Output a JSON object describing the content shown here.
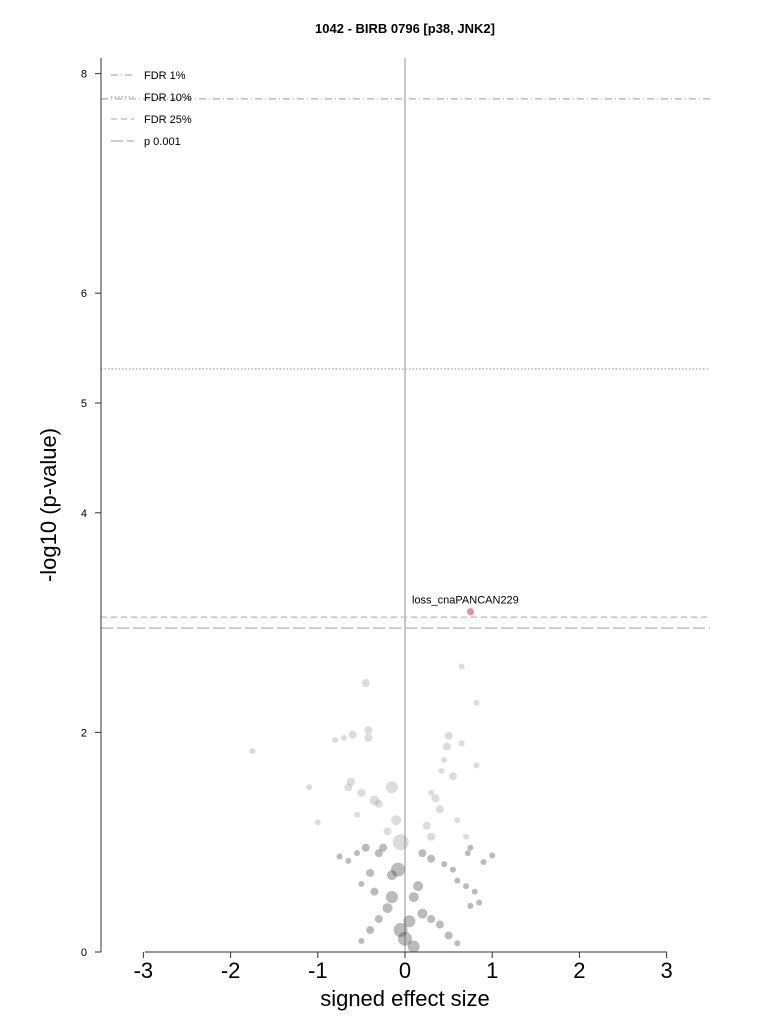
{
  "chart_data": {
    "type": "scatter",
    "title": "1042 - BIRB 0796 [p38, JNK2]",
    "xlabel": "signed effect size",
    "ylabel": "-log10 (p-value)",
    "xlim": [
      -3.5,
      3.5
    ],
    "ylim": [
      0,
      8.2
    ],
    "xticks": [
      -3,
      -2,
      -1,
      0,
      1,
      2,
      3
    ],
    "xtick_labels": [
      "-3",
      "-2",
      "-1",
      "0",
      "1",
      "2",
      "3"
    ],
    "yticks": [
      0,
      2,
      4,
      5,
      6,
      8
    ],
    "ytick_labels": [
      "0",
      "2",
      "4",
      "5",
      "6",
      "8"
    ],
    "grid": false,
    "legend_position": "top-left",
    "thresholds": [
      {
        "name": "FDR 1%",
        "y": 7.77,
        "style": "dashdot",
        "color": "#b0b0b0"
      },
      {
        "name": "FDR 10%",
        "y": 5.31,
        "style": "dotted",
        "color": "#a0a0a0"
      },
      {
        "name": "FDR 25%",
        "y": 3.05,
        "style": "dashed",
        "color": "#b8b8b8"
      },
      {
        "name": "p 0.001",
        "y": 2.95,
        "style": "longdash",
        "color": "#b0b0b0"
      }
    ],
    "highlight": {
      "label": "loss_cnaPANCAN229",
      "x": 0.75,
      "y": 3.1,
      "color": "#f08a9a"
    },
    "points": [
      [
        -1.75,
        1.83,
        3
      ],
      [
        -1.1,
        1.5,
        3
      ],
      [
        -1.0,
        1.18,
        3
      ],
      [
        -0.8,
        1.93,
        3
      ],
      [
        -0.7,
        1.95,
        3
      ],
      [
        -0.6,
        1.98,
        4
      ],
      [
        -0.45,
        2.45,
        4
      ],
      [
        -0.42,
        2.02,
        4
      ],
      [
        -0.42,
        1.95,
        4
      ],
      [
        -0.15,
        1.5,
        6
      ],
      [
        -0.3,
        1.35,
        4
      ],
      [
        -0.35,
        1.38,
        5
      ],
      [
        -0.5,
        1.45,
        4
      ],
      [
        -0.55,
        1.25,
        3
      ],
      [
        -0.65,
        1.5,
        4
      ],
      [
        -0.62,
        1.55,
        4
      ],
      [
        -0.05,
        1.0,
        8
      ],
      [
        -0.1,
        1.2,
        5
      ],
      [
        -0.2,
        1.1,
        4
      ],
      [
        -0.25,
        0.95,
        4
      ],
      [
        -0.3,
        0.9,
        4
      ],
      [
        -0.45,
        0.95,
        4
      ],
      [
        -0.55,
        0.9,
        3
      ],
      [
        -0.65,
        0.83,
        3
      ],
      [
        -0.75,
        0.87,
        3
      ],
      [
        -0.08,
        0.75,
        7
      ],
      [
        -0.15,
        0.7,
        5
      ],
      [
        -0.4,
        0.72,
        4
      ],
      [
        -0.5,
        0.62,
        3
      ],
      [
        -0.35,
        0.55,
        4
      ],
      [
        0.5,
        1.97,
        4
      ],
      [
        0.48,
        1.87,
        4
      ],
      [
        0.45,
        1.75,
        3
      ],
      [
        0.42,
        1.65,
        3
      ],
      [
        0.55,
        1.6,
        4
      ],
      [
        0.65,
        1.9,
        3
      ],
      [
        0.82,
        1.7,
        3
      ],
      [
        0.82,
        2.27,
        3
      ],
      [
        0.65,
        2.6,
        3
      ],
      [
        0.35,
        1.4,
        4
      ],
      [
        0.4,
        1.3,
        4
      ],
      [
        0.3,
        1.45,
        3
      ],
      [
        0.6,
        1.2,
        3
      ],
      [
        0.7,
        1.05,
        3
      ],
      [
        0.75,
        0.95,
        3
      ],
      [
        0.72,
        0.9,
        3
      ],
      [
        1.0,
        0.88,
        3
      ],
      [
        0.9,
        0.82,
        3
      ],
      [
        0.25,
        1.15,
        4
      ],
      [
        0.3,
        1.05,
        4
      ],
      [
        0.2,
        0.9,
        4
      ],
      [
        0.3,
        0.85,
        4
      ],
      [
        0.45,
        0.8,
        3
      ],
      [
        0.55,
        0.75,
        3
      ],
      [
        0.6,
        0.65,
        3
      ],
      [
        0.7,
        0.6,
        3
      ],
      [
        0.8,
        0.55,
        3
      ],
      [
        0.85,
        0.45,
        3
      ],
      [
        0.75,
        0.42,
        3
      ],
      [
        0.15,
        0.6,
        5
      ],
      [
        0.1,
        0.5,
        5
      ],
      [
        -0.15,
        0.5,
        6
      ],
      [
        -0.2,
        0.4,
        5
      ],
      [
        0.2,
        0.35,
        5
      ],
      [
        0.3,
        0.3,
        4
      ],
      [
        0.4,
        0.25,
        4
      ],
      [
        -0.3,
        0.3,
        4
      ],
      [
        -0.4,
        0.2,
        4
      ],
      [
        0.5,
        0.15,
        4
      ],
      [
        -0.5,
        0.1,
        3
      ],
      [
        0.6,
        0.08,
        3
      ],
      [
        0.05,
        0.28,
        6
      ],
      [
        -0.05,
        0.2,
        7
      ],
      [
        0.0,
        0.12,
        7
      ],
      [
        0.1,
        0.05,
        6
      ]
    ]
  }
}
